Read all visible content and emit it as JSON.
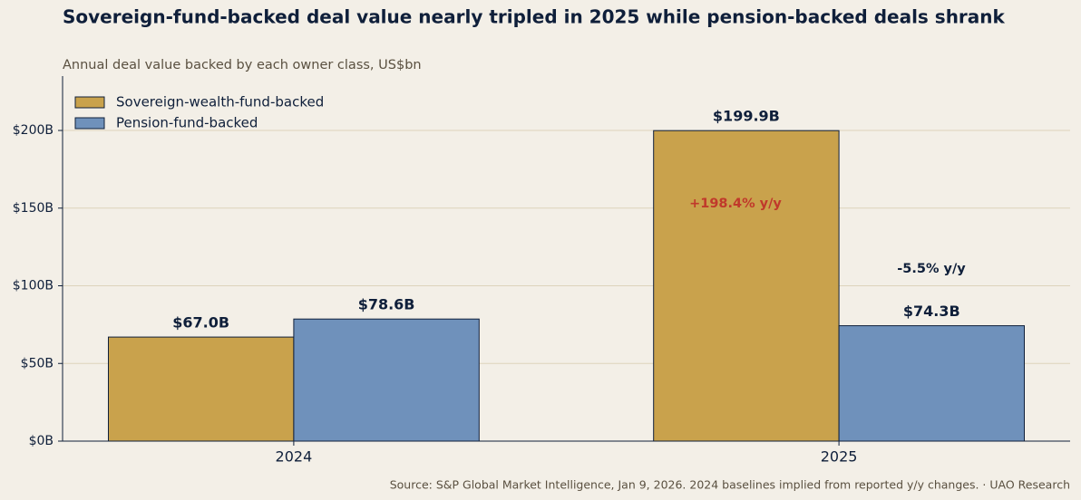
{
  "chart_data": {
    "type": "bar",
    "title": "Sovereign-fund-backed deal value nearly tripled in 2025 while pension-backed deals shrank",
    "subtitle": "Annual deal value backed by each owner class, US$bn",
    "source": "Source: S&P Global Market Intelligence, Jan 9, 2026. 2024 baselines implied from reported y/y changes.  ·  UAO Research",
    "categories": [
      "2024",
      "2025"
    ],
    "series": [
      {
        "name": "Sovereign-wealth-fund-backed",
        "color": "#c9a24c",
        "values": [
          67.0,
          199.9
        ],
        "value_labels": [
          "$67.0B",
          "$199.9B"
        ]
      },
      {
        "name": "Pension-fund-backed",
        "color": "#6f91bb",
        "values": [
          78.6,
          74.3
        ],
        "value_labels": [
          "$78.6B",
          "$74.3B"
        ]
      }
    ],
    "annotations": [
      {
        "text": "+198.4% y/y",
        "color": "#c0392b"
      },
      {
        "text": "-5.5% y/y",
        "color": "#0f1f3a"
      }
    ],
    "ylim": [
      0,
      235
    ],
    "yticks": [
      {
        "value": 0,
        "label": "$0B"
      },
      {
        "value": 50,
        "label": "$50B"
      },
      {
        "value": 100,
        "label": "$100B"
      },
      {
        "value": 150,
        "label": "$150B"
      },
      {
        "value": 200,
        "label": "$200B"
      }
    ],
    "grid": true,
    "legend": "upper left"
  }
}
